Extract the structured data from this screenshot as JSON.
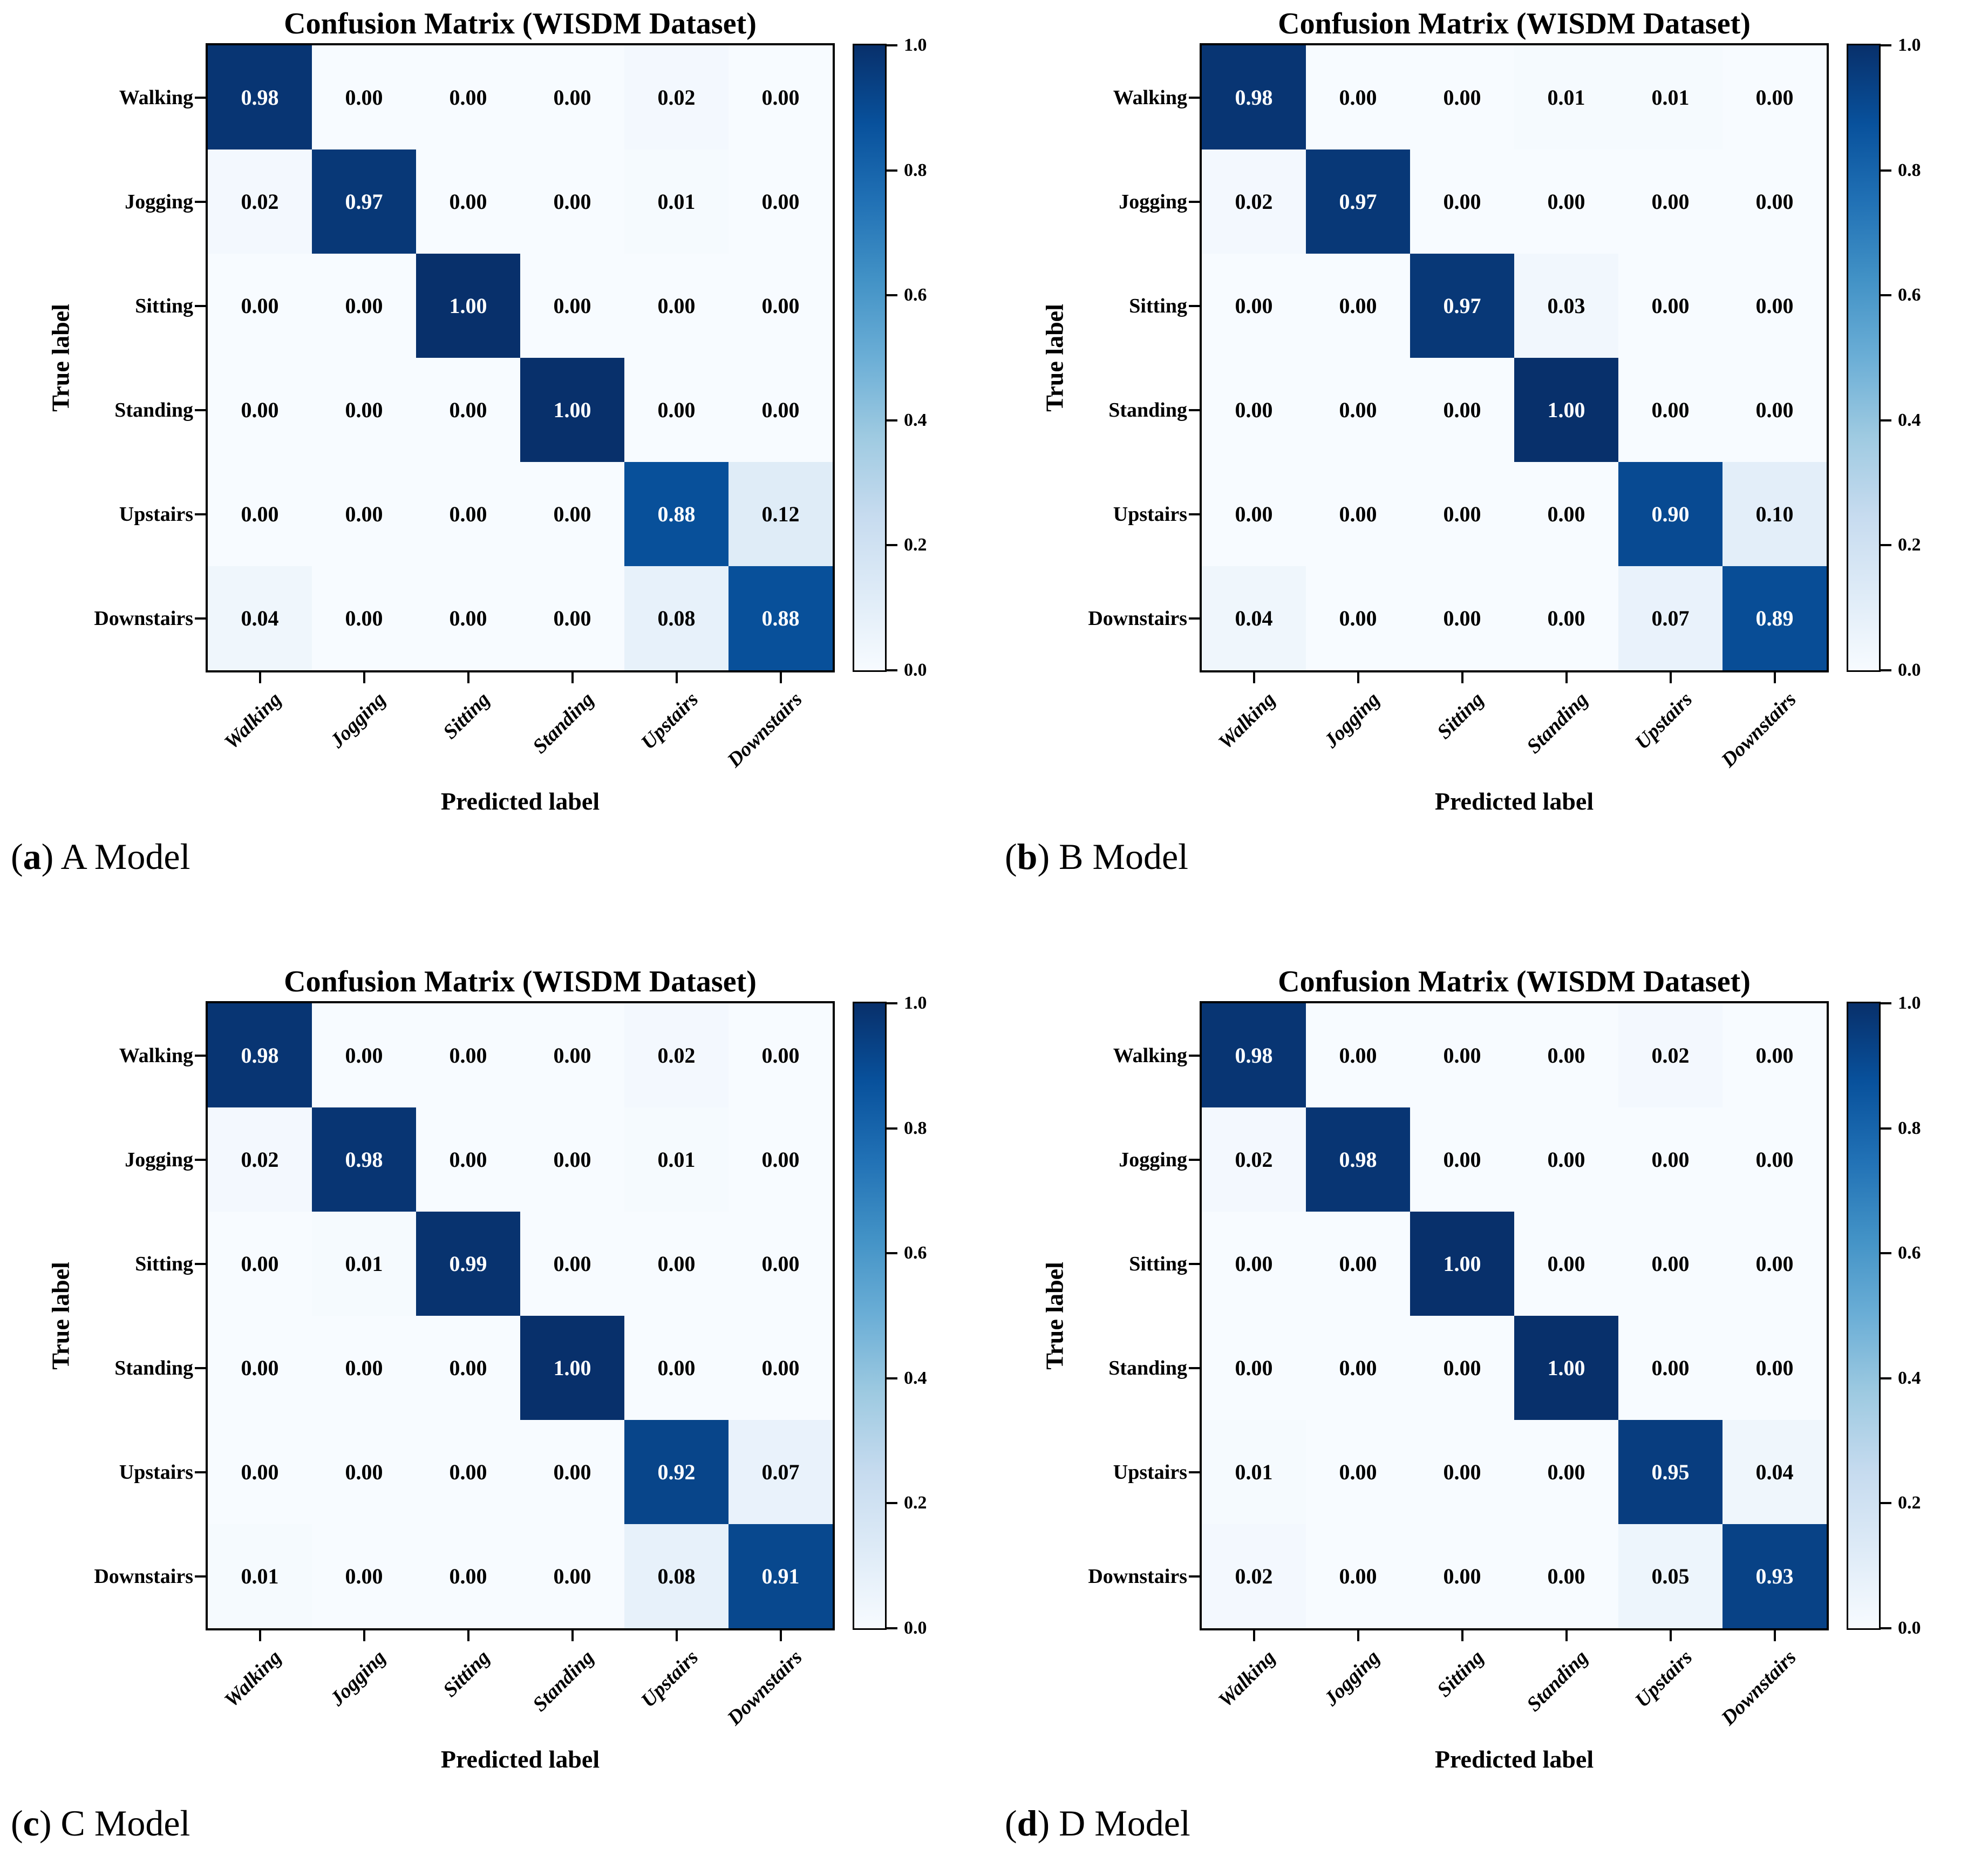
{
  "page": {
    "title": "Confusion matrices on the WISDM Dataset for four models",
    "background": "#ffffff"
  },
  "style": {
    "colormap_name": "Blues",
    "colormap_anchors": [
      "#f7fbff",
      "#deebf7",
      "#c6dbef",
      "#9ecae1",
      "#6baed6",
      "#4292c6",
      "#2171b5",
      "#08519c",
      "#08306b"
    ],
    "cell_text_light": "#ffffff",
    "cell_text_dark": "#000000",
    "spine_color": "#000000"
  },
  "chart_data": [
    {
      "type": "heatmap",
      "panel_id": "a",
      "title": "Confusion Matrix (WISDM Dataset)",
      "xlabel": "Predicted label",
      "ylabel": "True label",
      "x_categories": [
        "Walking",
        "Jogging",
        "Sitting",
        "Standing",
        "Upstairs",
        "Downstairs"
      ],
      "y_categories": [
        "Walking",
        "Jogging",
        "Sitting",
        "Standing",
        "Upstairs",
        "Downstairs"
      ],
      "matrix": [
        [
          "0.98",
          "0.00",
          "0.00",
          "0.00",
          "0.02",
          "0.00"
        ],
        [
          "0.02",
          "0.97",
          "0.00",
          "0.00",
          "0.01",
          "0.00"
        ],
        [
          "0.00",
          "0.00",
          "1.00",
          "0.00",
          "0.00",
          "0.00"
        ],
        [
          "0.00",
          "0.00",
          "0.00",
          "1.00",
          "0.00",
          "0.00"
        ],
        [
          "0.00",
          "0.00",
          "0.00",
          "0.00",
          "0.88",
          "0.12"
        ],
        [
          "0.04",
          "0.00",
          "0.00",
          "0.00",
          "0.08",
          "0.88"
        ]
      ],
      "value_range": [
        0,
        1
      ],
      "colorbar_ticks": [
        "1.0",
        "0.8",
        "0.6",
        "0.4",
        "0.2",
        "0.0"
      ],
      "legend_position": "right",
      "caption": {
        "open": "(",
        "letter": "a",
        "close": ") ",
        "label": "A Model"
      }
    },
    {
      "type": "heatmap",
      "panel_id": "b",
      "title": "Confusion Matrix (WISDM Dataset)",
      "xlabel": "Predicted label",
      "ylabel": "True label",
      "x_categories": [
        "Walking",
        "Jogging",
        "Sitting",
        "Standing",
        "Upstairs",
        "Downstairs"
      ],
      "y_categories": [
        "Walking",
        "Jogging",
        "Sitting",
        "Standing",
        "Upstairs",
        "Downstairs"
      ],
      "matrix": [
        [
          "0.98",
          "0.00",
          "0.00",
          "0.01",
          "0.01",
          "0.00"
        ],
        [
          "0.02",
          "0.97",
          "0.00",
          "0.00",
          "0.00",
          "0.00"
        ],
        [
          "0.00",
          "0.00",
          "0.97",
          "0.03",
          "0.00",
          "0.00"
        ],
        [
          "0.00",
          "0.00",
          "0.00",
          "1.00",
          "0.00",
          "0.00"
        ],
        [
          "0.00",
          "0.00",
          "0.00",
          "0.00",
          "0.90",
          "0.10"
        ],
        [
          "0.04",
          "0.00",
          "0.00",
          "0.00",
          "0.07",
          "0.89"
        ]
      ],
      "value_range": [
        0,
        1
      ],
      "colorbar_ticks": [
        "1.0",
        "0.8",
        "0.6",
        "0.4",
        "0.2",
        "0.0"
      ],
      "legend_position": "right",
      "caption": {
        "open": "(",
        "letter": "b",
        "close": ") ",
        "label": "B Model"
      }
    },
    {
      "type": "heatmap",
      "panel_id": "c",
      "title": "Confusion Matrix (WISDM Dataset)",
      "xlabel": "Predicted label",
      "ylabel": "True label",
      "x_categories": [
        "Walking",
        "Jogging",
        "Sitting",
        "Standing",
        "Upstairs",
        "Downstairs"
      ],
      "y_categories": [
        "Walking",
        "Jogging",
        "Sitting",
        "Standing",
        "Upstairs",
        "Downstairs"
      ],
      "matrix": [
        [
          "0.98",
          "0.00",
          "0.00",
          "0.00",
          "0.02",
          "0.00"
        ],
        [
          "0.02",
          "0.98",
          "0.00",
          "0.00",
          "0.01",
          "0.00"
        ],
        [
          "0.00",
          "0.01",
          "0.99",
          "0.00",
          "0.00",
          "0.00"
        ],
        [
          "0.00",
          "0.00",
          "0.00",
          "1.00",
          "0.00",
          "0.00"
        ],
        [
          "0.00",
          "0.00",
          "0.00",
          "0.00",
          "0.92",
          "0.07"
        ],
        [
          "0.01",
          "0.00",
          "0.00",
          "0.00",
          "0.08",
          "0.91"
        ]
      ],
      "value_range": [
        0,
        1
      ],
      "colorbar_ticks": [
        "1.0",
        "0.8",
        "0.6",
        "0.4",
        "0.2",
        "0.0"
      ],
      "legend_position": "right",
      "caption": {
        "open": "(",
        "letter": "c",
        "close": ") ",
        "label": "C Model"
      }
    },
    {
      "type": "heatmap",
      "panel_id": "d",
      "title": "Confusion Matrix (WISDM Dataset)",
      "xlabel": "Predicted label",
      "ylabel": "True label",
      "x_categories": [
        "Walking",
        "Jogging",
        "Sitting",
        "Standing",
        "Upstairs",
        "Downstairs"
      ],
      "y_categories": [
        "Walking",
        "Jogging",
        "Sitting",
        "Standing",
        "Upstairs",
        "Downstairs"
      ],
      "matrix": [
        [
          "0.98",
          "0.00",
          "0.00",
          "0.00",
          "0.02",
          "0.00"
        ],
        [
          "0.02",
          "0.98",
          "0.00",
          "0.00",
          "0.00",
          "0.00"
        ],
        [
          "0.00",
          "0.00",
          "1.00",
          "0.00",
          "0.00",
          "0.00"
        ],
        [
          "0.00",
          "0.00",
          "0.00",
          "1.00",
          "0.00",
          "0.00"
        ],
        [
          "0.01",
          "0.00",
          "0.00",
          "0.00",
          "0.95",
          "0.04"
        ],
        [
          "0.02",
          "0.00",
          "0.00",
          "0.00",
          "0.05",
          "0.93"
        ]
      ],
      "value_range": [
        0,
        1
      ],
      "colorbar_ticks": [
        "1.0",
        "0.8",
        "0.6",
        "0.4",
        "0.2",
        "0.0"
      ],
      "legend_position": "right",
      "caption": {
        "open": "(",
        "letter": "d",
        "close": ") ",
        "label": "D Model"
      }
    }
  ]
}
